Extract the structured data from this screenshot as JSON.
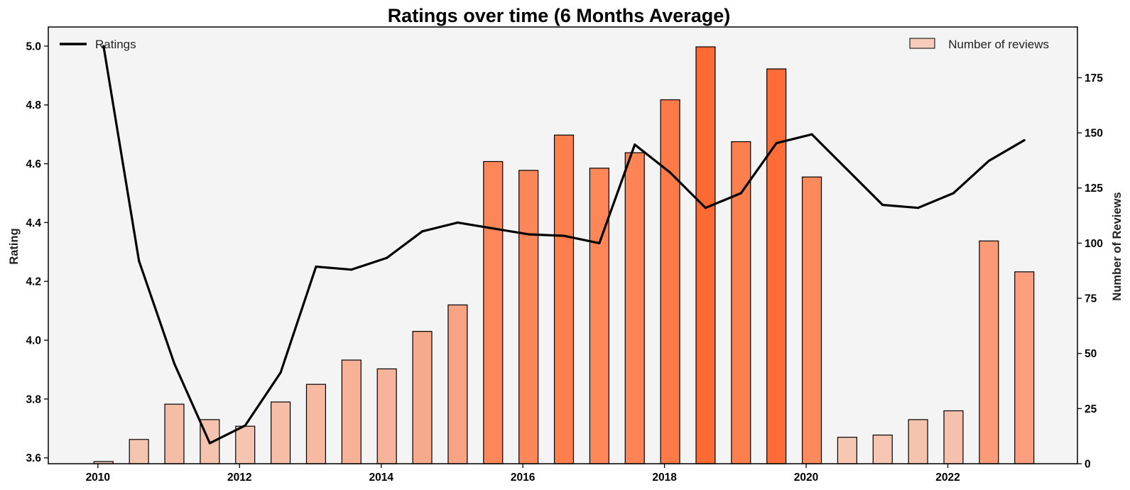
{
  "chart_data": {
    "type": "bar+line",
    "title": "Ratings over time (6 Months Average)",
    "ylabel": "Rating",
    "y2label": "Number of Reviews",
    "xlabel": "",
    "xlim": [
      2009.3,
      2023.83
    ],
    "ylim": [
      3.58,
      5.065
    ],
    "y2lim": [
      0,
      198
    ],
    "xticks": [
      2010,
      2012,
      2014,
      2016,
      2018,
      2020,
      2022
    ],
    "yticks": [
      3.6,
      3.8,
      4.0,
      4.2,
      4.4,
      4.6,
      4.8,
      5.0
    ],
    "y2ticks": [
      0,
      25,
      50,
      75,
      100,
      125,
      150,
      175
    ],
    "background": "#f4f4f4",
    "grid": false,
    "line_legend_position": "top-left",
    "bar_legend_position": "top-right",
    "line_series": {
      "name": "Ratings",
      "color": "#000000",
      "x": [
        2010.08,
        2010.58,
        2011.08,
        2011.58,
        2012.08,
        2012.58,
        2013.08,
        2013.58,
        2014.08,
        2014.58,
        2015.08,
        2015.58,
        2016.08,
        2016.58,
        2017.08,
        2017.58,
        2018.08,
        2018.58,
        2019.08,
        2019.58,
        2020.08,
        2020.58,
        2021.08,
        2021.58,
        2022.08,
        2022.58,
        2023.08
      ],
      "y": [
        5.0,
        4.27,
        3.92,
        3.65,
        3.71,
        3.89,
        4.25,
        4.24,
        4.28,
        4.37,
        4.4,
        4.38,
        4.36,
        4.355,
        4.33,
        4.665,
        4.57,
        4.45,
        4.5,
        4.67,
        4.7,
        4.58,
        4.46,
        4.45,
        4.5,
        4.61,
        4.68
      ]
    },
    "bar_series": {
      "name": "Number of reviews",
      "legend_color": "#f7ccba",
      "x": [
        2010.08,
        2010.58,
        2011.08,
        2011.58,
        2012.08,
        2012.58,
        2013.08,
        2013.58,
        2014.08,
        2014.58,
        2015.08,
        2015.58,
        2016.08,
        2016.58,
        2017.08,
        2017.58,
        2018.08,
        2018.58,
        2019.08,
        2019.58,
        2020.08,
        2020.58,
        2021.08,
        2021.58,
        2022.08,
        2022.58,
        2023.08
      ],
      "values": [
        1,
        11,
        27,
        20,
        17,
        28,
        36,
        47,
        43,
        60,
        72,
        137,
        133,
        149,
        134,
        141,
        165,
        189,
        146,
        179,
        130,
        12,
        13,
        20,
        24,
        101,
        87
      ],
      "colors": [
        "#f6c6b3",
        "#f6c5b2",
        "#f5bca6",
        "#f6c3af",
        "#f6c5b2",
        "#f6bda7",
        "#f6b9a2",
        "#f6b197",
        "#f6b49b",
        "#f7a98c",
        "#f8a384",
        "#fd8759",
        "#fd8759",
        "#fe7f4e",
        "#fd8759",
        "#fe8455",
        "#fe7b49",
        "#ff6a33",
        "#fe7f4e",
        "#ff6c36",
        "#fd8a5d",
        "#f6c7b3",
        "#f6c6b3",
        "#f6c3af",
        "#f6c1ac",
        "#fc9a77",
        "#fd9f7e"
      ]
    }
  }
}
